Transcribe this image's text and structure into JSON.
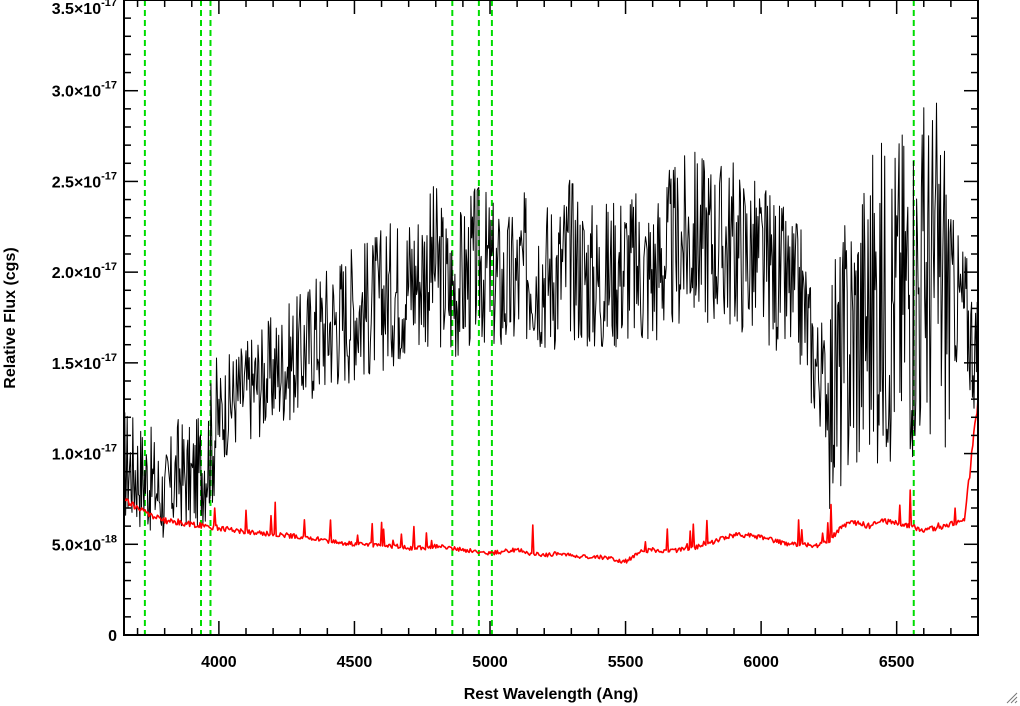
{
  "chart_data": {
    "type": "line",
    "title": "",
    "xlabel": "Rest Wavelength (Ang)",
    "ylabel": "Relative Flux (cgs)",
    "xlim": [
      3650,
      6800
    ],
    "ylim": [
      0,
      3.5e-17
    ],
    "x_ticks": [
      {
        "value": 4000,
        "label": "4000"
      },
      {
        "value": 4500,
        "label": "4500"
      },
      {
        "value": 5000,
        "label": "5000"
      },
      {
        "value": 5500,
        "label": "5500"
      },
      {
        "value": 6000,
        "label": "6000"
      },
      {
        "value": 6500,
        "label": "6500"
      }
    ],
    "y_ticks": [
      {
        "value": 0,
        "mant": "0",
        "exp": ""
      },
      {
        "value": 5e-18,
        "mant": "5.0×10",
        "exp": "-18"
      },
      {
        "value": 1e-17,
        "mant": "1.0×10",
        "exp": "-17"
      },
      {
        "value": 1.5e-17,
        "mant": "1.5×10",
        "exp": "-17"
      },
      {
        "value": 2e-17,
        "mant": "2.0×10",
        "exp": "-17"
      },
      {
        "value": 2.5e-17,
        "mant": "2.5×10",
        "exp": "-17"
      },
      {
        "value": 3e-17,
        "mant": "3.0×10",
        "exp": "-17"
      },
      {
        "value": 3.5e-17,
        "mant": "3.5×10",
        "exp": "-17"
      }
    ],
    "reference_lines": [
      3727,
      3934,
      3969,
      4861,
      4959,
      5007,
      6563
    ],
    "series": [
      {
        "color": "#000000",
        "x": [
          3650,
          3700,
          3750,
          3800,
          3850,
          3900,
          3950,
          4000,
          4050,
          4100,
          4150,
          4200,
          4250,
          4300,
          4350,
          4400,
          4450,
          4500,
          4550,
          4600,
          4650,
          4700,
          4750,
          4800,
          4850,
          4900,
          4950,
          5000,
          5050,
          5100,
          5150,
          5200,
          5250,
          5300,
          5350,
          5400,
          5450,
          5500,
          5550,
          5600,
          5650,
          5700,
          5750,
          5800,
          5850,
          5900,
          5950,
          6000,
          6050,
          6100,
          6150,
          6200,
          6250,
          6300,
          6350,
          6400,
          6450,
          6500,
          6550,
          6600,
          6650,
          6700,
          6750,
          6800
        ],
        "y": [
          9.5e-18,
          9e-18,
          8.5e-18,
          7.5e-18,
          9e-18,
          8.5e-18,
          9.5e-18,
          1.2e-17,
          1.3e-17,
          1.35e-17,
          1.4e-17,
          1.45e-17,
          1.5e-17,
          1.55e-17,
          1.65e-17,
          1.7e-17,
          1.75e-17,
          1.8e-17,
          1.8e-17,
          1.85e-17,
          1.9e-17,
          1.95e-17,
          2e-17,
          2.05e-17,
          1.9e-17,
          1.95e-17,
          2.05e-17,
          2e-17,
          1.9e-17,
          1.95e-17,
          2.05e-17,
          2e-17,
          2e-17,
          2.1e-17,
          2e-17,
          1.95e-17,
          2e-17,
          2.05e-17,
          2e-17,
          2e-17,
          2.1e-17,
          2.15e-17,
          2.2e-17,
          2.2e-17,
          2.15e-17,
          2.15e-17,
          2.1e-17,
          2.05e-17,
          2e-17,
          1.9e-17,
          1.85e-17,
          1.5e-17,
          1.35e-17,
          1.5e-17,
          1.7e-17,
          1.8e-17,
          1.85e-17,
          1.9e-17,
          1.95e-17,
          2e-17,
          2e-17,
          1.9e-17,
          1.8e-17,
          1.5e-17
        ]
      },
      {
        "color": "#ff0000",
        "x": [
          3650,
          3700,
          3750,
          3800,
          3850,
          3900,
          3950,
          4000,
          4050,
          4100,
          4150,
          4200,
          4250,
          4300,
          4350,
          4400,
          4450,
          4500,
          4550,
          4600,
          4650,
          4700,
          4750,
          4800,
          4850,
          4900,
          4950,
          5000,
          5050,
          5100,
          5150,
          5200,
          5250,
          5300,
          5350,
          5400,
          5450,
          5500,
          5550,
          5600,
          5650,
          5700,
          5750,
          5800,
          5850,
          5900,
          5950,
          6000,
          6050,
          6100,
          6150,
          6200,
          6250,
          6300,
          6350,
          6400,
          6450,
          6500,
          6550,
          6600,
          6650,
          6700,
          6750,
          6800
        ],
        "y": [
          7.5e-18,
          7e-18,
          6.6e-18,
          6.3e-18,
          6.2e-18,
          6.1e-18,
          6e-18,
          5.9e-18,
          5.8e-18,
          5.7e-18,
          5.6e-18,
          5.6e-18,
          5.5e-18,
          5.4e-18,
          5.3e-18,
          5.2e-18,
          5.1e-18,
          5e-18,
          5e-18,
          4.9e-18,
          4.9e-18,
          4.8e-18,
          4.8e-18,
          4.9e-18,
          4.8e-18,
          4.7e-18,
          4.6e-18,
          4.5e-18,
          4.6e-18,
          4.7e-18,
          4.5e-18,
          4.4e-18,
          4.5e-18,
          4.4e-18,
          4.3e-18,
          4.3e-18,
          4.2e-18,
          4e-18,
          4.6e-18,
          4.7e-18,
          4.6e-18,
          4.7e-18,
          4.8e-18,
          5e-18,
          5.3e-18,
          5.5e-18,
          5.5e-18,
          5.4e-18,
          5.2e-18,
          5e-18,
          5e-18,
          4.9e-18,
          5.2e-18,
          6e-18,
          6.2e-18,
          6e-18,
          6.3e-18,
          6.2e-18,
          6e-18,
          5.8e-18,
          5.9e-18,
          6.1e-18,
          6.3e-18,
          1.3e-17
        ]
      }
    ]
  }
}
